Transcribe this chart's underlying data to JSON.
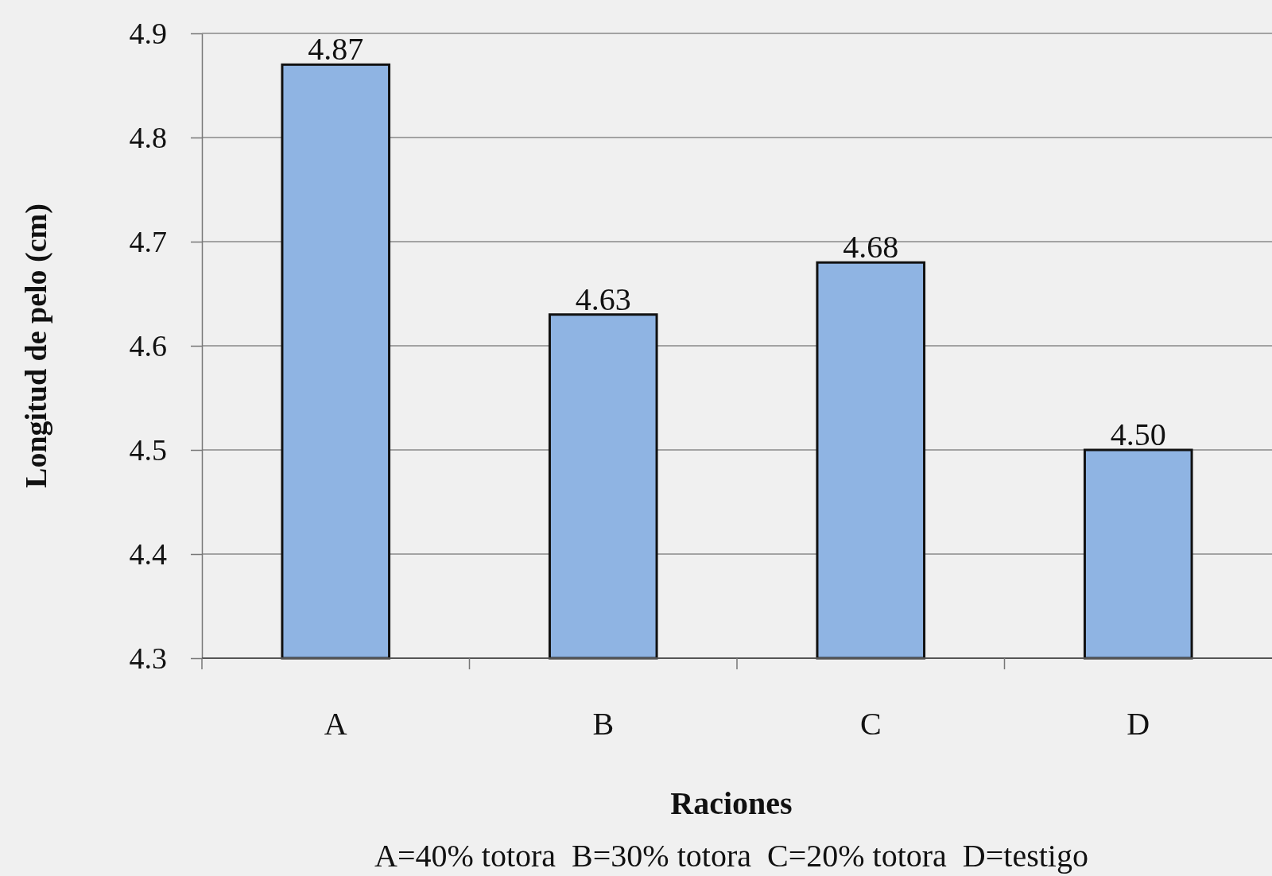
{
  "chart_data": {
    "type": "bar",
    "xlabel": "Raciones",
    "ylabel": "Longitud de pelo (cm)",
    "categories": [
      "A",
      "B",
      "C",
      "D"
    ],
    "values": [
      4.87,
      4.63,
      4.68,
      4.5
    ],
    "value_labels": [
      "4.87",
      "4.63",
      "4.68",
      "4.50"
    ],
    "color": "#8fb4e3",
    "ylim": [
      4.3,
      4.9
    ],
    "yticks": [
      4.3,
      4.4,
      4.5,
      4.6,
      4.7,
      4.8,
      4.9
    ],
    "grid": "y",
    "annotations": [
      "A=40% totora  B=30% totora  C=20% totora  D=testigo"
    ]
  }
}
